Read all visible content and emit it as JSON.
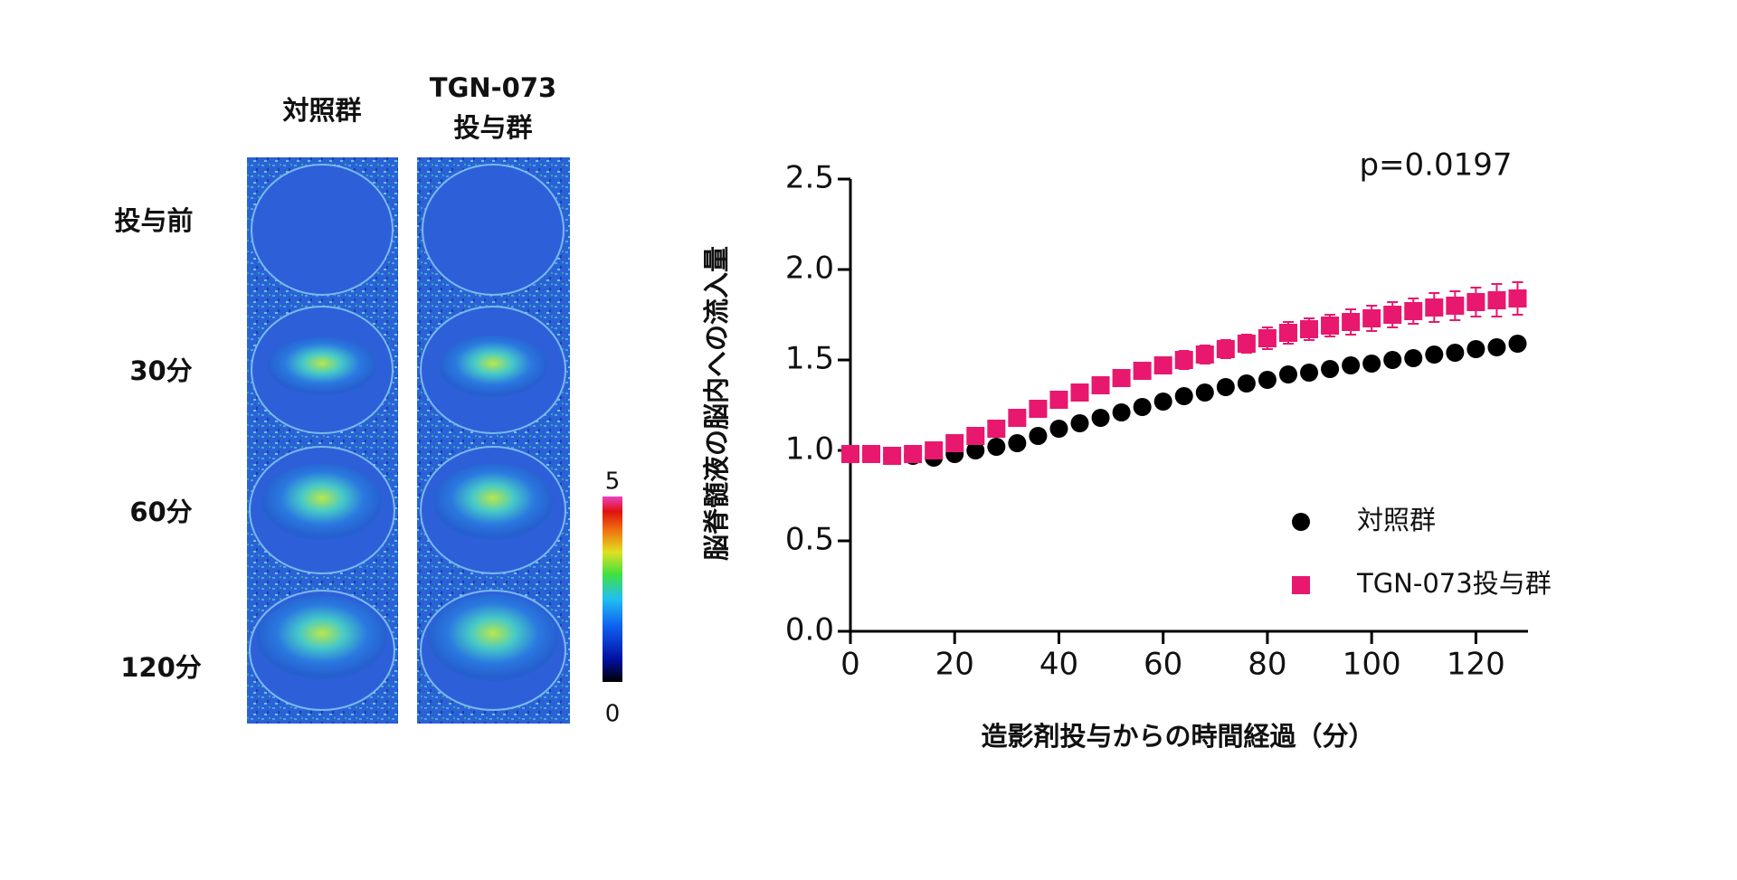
{
  "image_panel": {
    "columns": [
      [
        "対照群"
      ],
      [
        "TGN-073",
        "投与群"
      ]
    ],
    "rows": [
      "投与前",
      "30分",
      "60分",
      "120分"
    ],
    "colorbar": {
      "ylim": [
        0,
        5
      ],
      "yticks": [
        0,
        5
      ]
    }
  },
  "chart_data": {
    "type": "scatter",
    "annotation": "p=0.0197",
    "y_label": "脳脊髄液の脳内への流入量",
    "x_label": "造影剤投与からの時間経過（分）",
    "x": [
      0,
      4,
      8,
      12,
      16,
      20,
      24,
      28,
      32,
      36,
      40,
      44,
      48,
      52,
      56,
      60,
      64,
      68,
      72,
      76,
      80,
      84,
      88,
      92,
      96,
      100,
      104,
      108,
      112,
      116,
      120,
      124,
      128
    ],
    "series": [
      {
        "name": "対照群",
        "color": "#000000",
        "marker": "circle",
        "values": [
          0.98,
          0.98,
          0.97,
          0.97,
          0.96,
          0.98,
          1.0,
          1.02,
          1.04,
          1.08,
          1.12,
          1.15,
          1.18,
          1.21,
          1.24,
          1.27,
          1.3,
          1.32,
          1.35,
          1.37,
          1.39,
          1.42,
          1.43,
          1.45,
          1.47,
          1.48,
          1.5,
          1.51,
          1.53,
          1.54,
          1.56,
          1.57,
          1.59
        ]
      },
      {
        "name": "TGN-073投与群",
        "color": "#e8186e",
        "marker": "square",
        "values": [
          0.98,
          0.98,
          0.97,
          0.98,
          1.0,
          1.04,
          1.08,
          1.12,
          1.18,
          1.23,
          1.28,
          1.32,
          1.36,
          1.4,
          1.44,
          1.47,
          1.5,
          1.53,
          1.56,
          1.59,
          1.62,
          1.65,
          1.67,
          1.69,
          1.71,
          1.73,
          1.75,
          1.77,
          1.79,
          1.8,
          1.82,
          1.83,
          1.84
        ],
        "errors": [
          0.02,
          0.02,
          0.02,
          0.02,
          0.02,
          0.02,
          0.02,
          0.02,
          0.03,
          0.03,
          0.03,
          0.03,
          0.04,
          0.04,
          0.04,
          0.04,
          0.05,
          0.05,
          0.05,
          0.05,
          0.06,
          0.06,
          0.06,
          0.06,
          0.07,
          0.07,
          0.07,
          0.07,
          0.08,
          0.08,
          0.08,
          0.09,
          0.09
        ]
      }
    ],
    "xlim": [
      0,
      130
    ],
    "xticks": [
      0,
      20,
      40,
      60,
      80,
      100,
      120
    ],
    "ylim": [
      0,
      2.5
    ],
    "yticks": [
      {
        "value": 0,
        "label": "0.0"
      },
      0.5,
      {
        "value": 1,
        "label": "1.0"
      },
      1.5,
      {
        "value": 2,
        "label": "2.0"
      },
      2.5
    ],
    "legend": "lower right"
  }
}
